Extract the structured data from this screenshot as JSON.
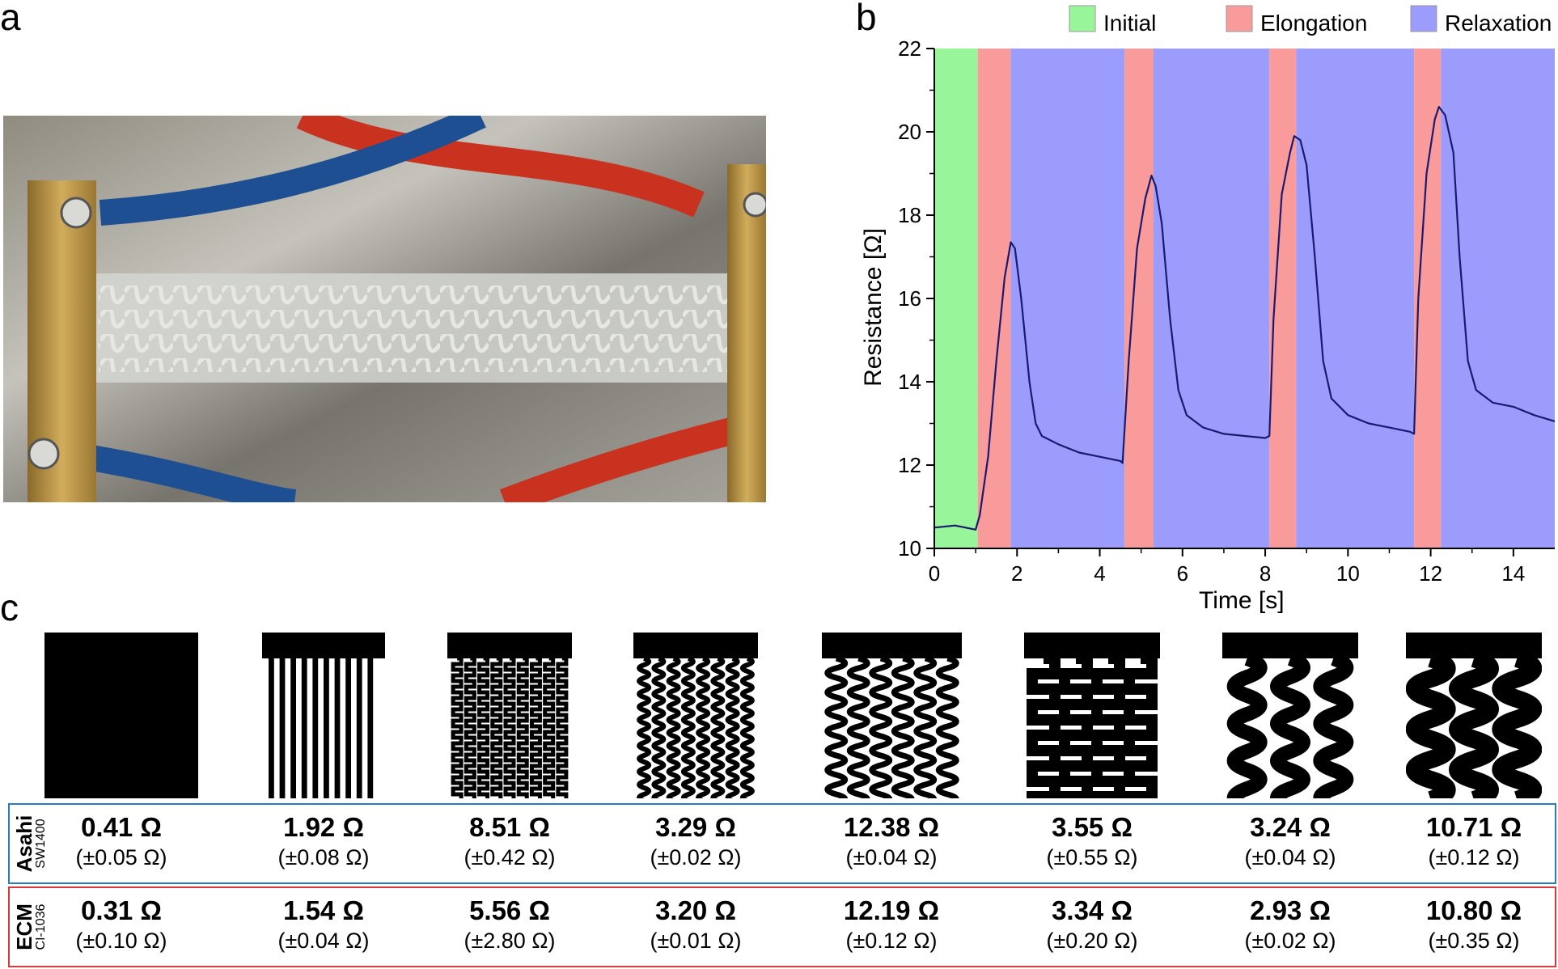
{
  "panels": {
    "a": "a",
    "b": "b",
    "c": "c"
  },
  "chart_data": {
    "type": "line",
    "title": "",
    "xlabel": "Time [s]",
    "ylabel": "Resistance [Ω]",
    "xlim": [
      0,
      15
    ],
    "ylim": [
      10,
      22
    ],
    "xticks": [
      0,
      2,
      4,
      6,
      8,
      10,
      12,
      14
    ],
    "yticks": [
      10,
      12,
      14,
      16,
      18,
      20,
      22
    ],
    "legend": [
      "Initial",
      "Elongation",
      "Relaxation"
    ],
    "legend_position": "top",
    "phases": [
      {
        "type": "Initial",
        "start": 0,
        "end": 1.05,
        "color": "#99f599"
      },
      {
        "type": "Elongation",
        "start": 1.05,
        "end": 1.85,
        "color": "#f99b9b"
      },
      {
        "type": "Relaxation",
        "start": 1.85,
        "end": 4.6,
        "color": "#9c9cfc"
      },
      {
        "type": "Elongation",
        "start": 4.6,
        "end": 5.3,
        "color": "#f99b9b"
      },
      {
        "type": "Relaxation",
        "start": 5.3,
        "end": 8.1,
        "color": "#9c9cfc"
      },
      {
        "type": "Elongation",
        "start": 8.1,
        "end": 8.75,
        "color": "#f99b9b"
      },
      {
        "type": "Relaxation",
        "start": 8.75,
        "end": 11.6,
        "color": "#9c9cfc"
      },
      {
        "type": "Elongation",
        "start": 11.6,
        "end": 12.25,
        "color": "#f99b9b"
      },
      {
        "type": "Relaxation",
        "start": 12.25,
        "end": 15,
        "color": "#9c9cfc"
      }
    ],
    "series": [
      {
        "name": "Resistance",
        "color": "#1a1a6e",
        "x": [
          0,
          0.5,
          1.0,
          1.1,
          1.3,
          1.5,
          1.7,
          1.85,
          1.95,
          2.1,
          2.3,
          2.45,
          2.6,
          3.0,
          3.5,
          4.0,
          4.5,
          4.55,
          4.7,
          4.9,
          5.1,
          5.25,
          5.35,
          5.5,
          5.7,
          5.9,
          6.1,
          6.5,
          7.0,
          7.5,
          8.0,
          8.1,
          8.2,
          8.4,
          8.6,
          8.7,
          8.85,
          9.0,
          9.2,
          9.4,
          9.6,
          10.0,
          10.5,
          11.0,
          11.5,
          11.6,
          11.7,
          11.9,
          12.1,
          12.2,
          12.35,
          12.55,
          12.7,
          12.9,
          13.1,
          13.5,
          14.0,
          14.5,
          15.0
        ],
        "y": [
          10.5,
          10.55,
          10.45,
          10.8,
          12.2,
          14.5,
          16.5,
          17.35,
          17.2,
          16.0,
          14.0,
          13.0,
          12.7,
          12.5,
          12.3,
          12.2,
          12.1,
          12.05,
          14.5,
          17.2,
          18.4,
          18.95,
          18.7,
          17.8,
          15.5,
          13.8,
          13.2,
          12.9,
          12.75,
          12.7,
          12.65,
          12.7,
          15.5,
          18.5,
          19.5,
          19.9,
          19.8,
          19.2,
          17.0,
          14.5,
          13.6,
          13.2,
          13.0,
          12.9,
          12.8,
          12.75,
          16.0,
          19.0,
          20.3,
          20.6,
          20.4,
          19.5,
          17.0,
          14.5,
          13.8,
          13.5,
          13.4,
          13.2,
          13.05
        ]
      }
    ]
  },
  "designs_row": {
    "rows": [
      {
        "name": "Asahi",
        "sub": "SW1400",
        "color": "#2b7bc2",
        "values": [
          "0.41 Ω",
          "1.92 Ω",
          "8.51 Ω",
          "3.29 Ω",
          "12.38 Ω",
          "3.55 Ω",
          "3.24 Ω",
          "10.71 Ω"
        ],
        "errors": [
          "(±0.05 Ω)",
          "(±0.08 Ω)",
          "(±0.42 Ω)",
          "(±0.02 Ω)",
          "(±0.04 Ω)",
          "(±0.55 Ω)",
          "(±0.04 Ω)",
          "(±0.12 Ω)"
        ]
      },
      {
        "name": "ECM",
        "sub": "CI-1036",
        "color": "#d83a3a",
        "values": [
          "0.31 Ω",
          "1.54 Ω",
          "5.56 Ω",
          "3.20 Ω",
          "12.19 Ω",
          "3.34 Ω",
          "2.93 Ω",
          "10.80 Ω"
        ],
        "errors": [
          "(±0.10 Ω)",
          "(±0.04 Ω)",
          "(±2.80 Ω)",
          "(±0.01 Ω)",
          "(±0.12 Ω)",
          "(±0.20 Ω)",
          "(±0.02 Ω)",
          "(±0.35 Ω)"
        ]
      }
    ]
  }
}
